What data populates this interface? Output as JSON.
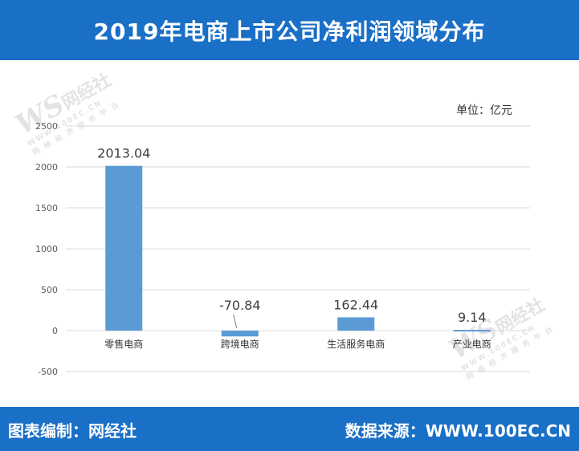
{
  "header": {
    "title": "2019年电商上市公司净利润领域分布"
  },
  "unit_label": "单位：亿元",
  "footer": {
    "left": "图表编制：网经社",
    "right": "数据来源：WWW.100EC.CN"
  },
  "watermark": {
    "logo": "WS",
    "name": "网经社",
    "url": "WWW.100EC.CN",
    "tagline": "网 络 经 济 服 务 平 台"
  },
  "colors": {
    "header": "#1a6fc6",
    "bar": "#5b9bd5",
    "grid": "#d9d9d9"
  },
  "chart_data": {
    "type": "bar",
    "categories": [
      "零售电商",
      "跨境电商",
      "生活服务电商",
      "产业电商"
    ],
    "values": [
      2013.04,
      -70.84,
      162.44,
      9.14
    ],
    "data_labels": [
      "2013.04",
      "-70.84",
      "162.44",
      "9.14"
    ],
    "ylim": [
      -500,
      2500
    ],
    "yticks": [
      2500,
      2000,
      1500,
      1000,
      500,
      0,
      -500
    ],
    "ytick_labels": [
      "2500",
      "2000",
      "1500",
      "1000",
      "500",
      "0",
      "-500"
    ],
    "grid": true,
    "legend": "none"
  }
}
